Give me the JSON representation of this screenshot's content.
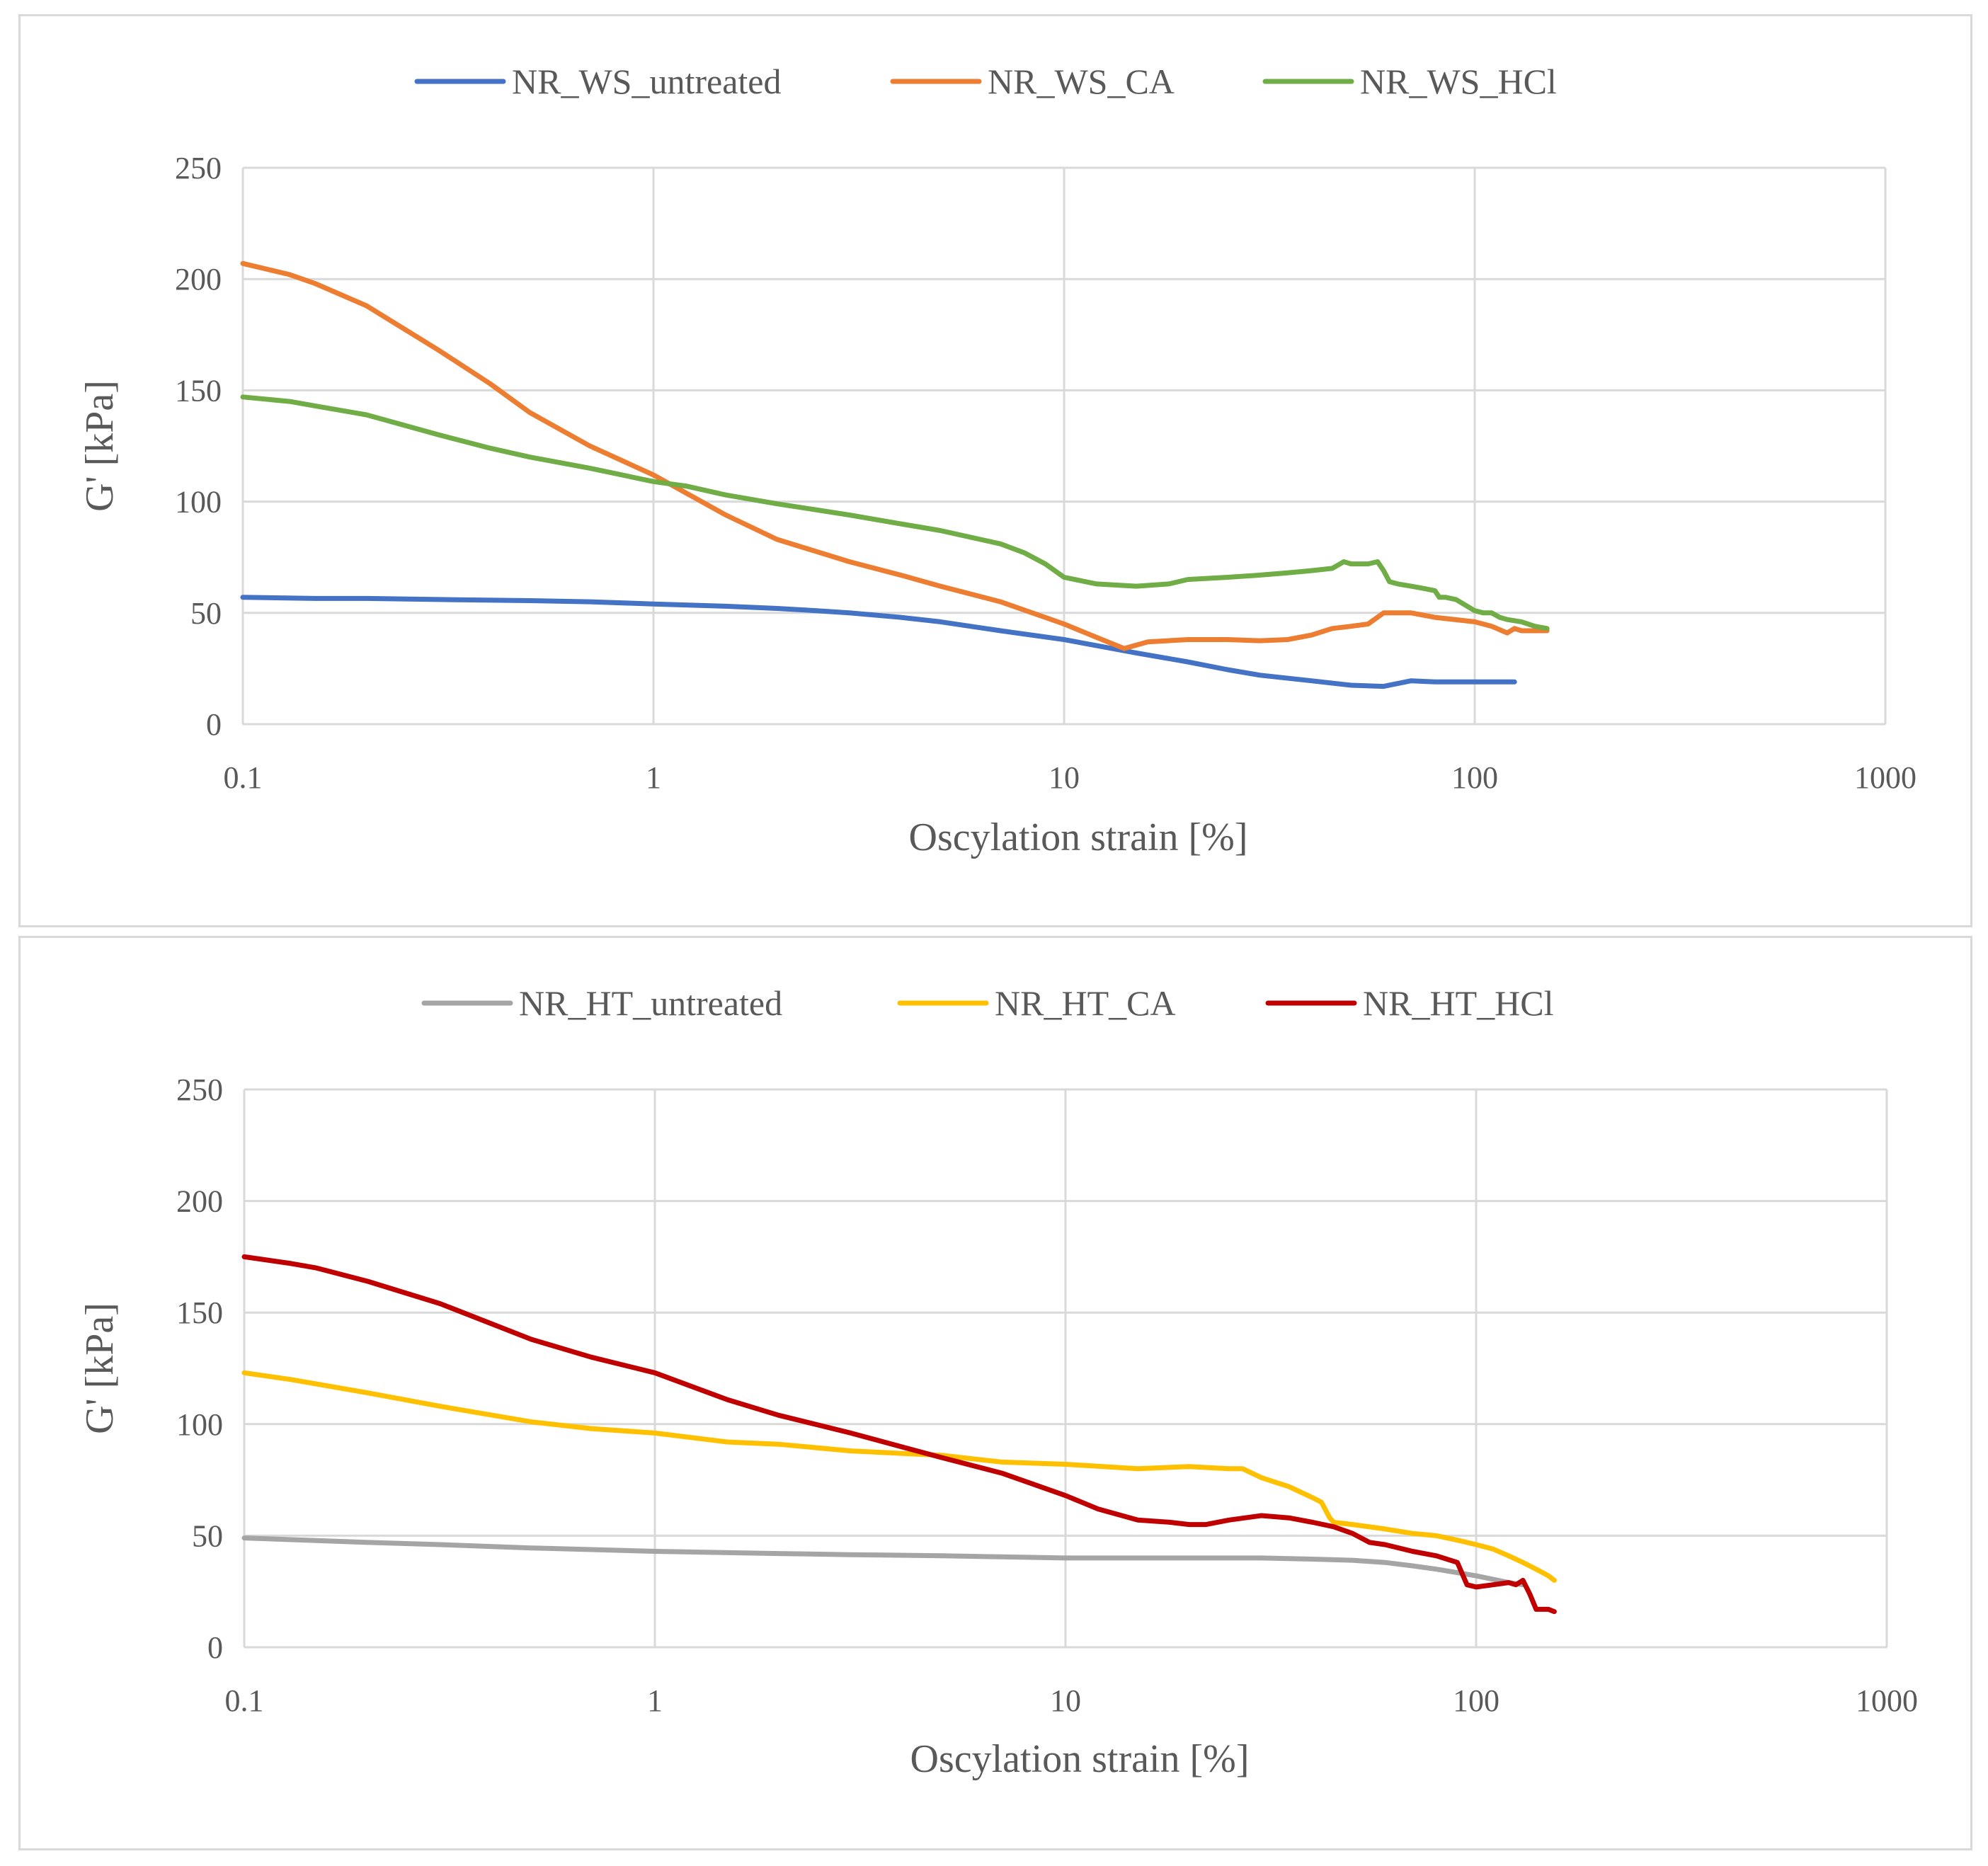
{
  "chart_data": [
    {
      "type": "line",
      "title": "",
      "xlabel": "Oscylation strain [%]",
      "ylabel": "G' [kPa]",
      "xscale": "log",
      "xlim": [
        0.1,
        1000
      ],
      "ylim": [
        0,
        250
      ],
      "x_ticks": [
        "0.1",
        "1",
        "10",
        "100",
        "1000"
      ],
      "y_ticks": [
        "0",
        "50",
        "100",
        "150",
        "200",
        "250"
      ],
      "grid": true,
      "legend_position": "top",
      "series": [
        {
          "name": "NR_WS_untreated",
          "color": "#4472c4",
          "x": [
            0.1,
            0.15,
            0.2,
            0.3,
            0.5,
            0.7,
            1,
            1.5,
            2,
            2.5,
            3,
            4,
            5,
            7,
            10,
            15,
            20,
            25,
            30,
            40,
            50,
            60,
            70,
            80,
            100,
            125
          ],
          "y": [
            57,
            56.5,
            56.5,
            56,
            55.5,
            55,
            54,
            53,
            52,
            51,
            50,
            48,
            46,
            42,
            38,
            32,
            28,
            24.5,
            22,
            19.5,
            17.5,
            17,
            19.5,
            19,
            19,
            19
          ]
        },
        {
          "name": "NR_WS_CA",
          "color": "#ed7d31",
          "x": [
            0.1,
            0.13,
            0.15,
            0.2,
            0.25,
            0.3,
            0.4,
            0.5,
            0.7,
            1,
            1.5,
            2,
            3,
            4,
            5,
            7,
            10,
            12,
            14,
            16,
            20,
            25,
            30,
            35,
            40,
            45,
            50,
            55,
            60,
            70,
            80,
            100,
            110,
            120,
            125,
            130,
            150
          ],
          "y": [
            207,
            202,
            198,
            188,
            177,
            168,
            153,
            140,
            125,
            112,
            94,
            83,
            73,
            67,
            62,
            55,
            45,
            39,
            34,
            37,
            38,
            38,
            37.5,
            38,
            40,
            43,
            44,
            45,
            50,
            50,
            48,
            46,
            44,
            41,
            43,
            42,
            42
          ]
        },
        {
          "name": "NR_WS_HCl",
          "color": "#70ad47",
          "x": [
            0.1,
            0.13,
            0.15,
            0.2,
            0.3,
            0.4,
            0.5,
            0.7,
            1,
            1.2,
            1.5,
            2,
            3,
            4,
            5,
            7,
            8,
            9,
            10,
            12,
            15,
            18,
            20,
            25,
            30,
            35,
            40,
            45,
            48,
            50,
            55,
            58,
            60,
            62,
            65,
            70,
            75,
            80,
            82,
            85,
            90,
            100,
            105,
            110,
            115,
            120,
            130,
            140,
            150
          ],
          "y": [
            147,
            145,
            143,
            139,
            130,
            124,
            120,
            115,
            109,
            107,
            103,
            99,
            94,
            90,
            87,
            81,
            77,
            72,
            66,
            63,
            62,
            63,
            65,
            66,
            67,
            68,
            69,
            70,
            73,
            72,
            72,
            73,
            69,
            64,
            63,
            62,
            61,
            60,
            57,
            57,
            56,
            51,
            50,
            50,
            48,
            47,
            46,
            44,
            43
          ]
        }
      ]
    },
    {
      "type": "line",
      "title": "",
      "xlabel": "Oscylation strain [%]",
      "ylabel": "G' [kPa]",
      "xscale": "log",
      "xlim": [
        0.1,
        1000
      ],
      "ylim": [
        0,
        250
      ],
      "x_ticks": [
        "0.1",
        "1",
        "10",
        "100",
        "1000"
      ],
      "y_ticks": [
        "0",
        "50",
        "100",
        "150",
        "200",
        "250"
      ],
      "grid": true,
      "legend_position": "top",
      "series": [
        {
          "name": "NR_HT_untreated",
          "color": "#a5a5a5",
          "x": [
            0.1,
            0.2,
            0.3,
            0.5,
            1,
            2,
            3,
            5,
            7,
            10,
            20,
            30,
            40,
            50,
            60,
            70,
            80,
            100,
            120,
            130
          ],
          "y": [
            49,
            47,
            46,
            44.5,
            43,
            42,
            41.5,
            41,
            40.5,
            40,
            40,
            40,
            39.5,
            39,
            38,
            36.5,
            35,
            32,
            29,
            28
          ]
        },
        {
          "name": "NR_HT_CA",
          "color": "#ffc000",
          "x": [
            0.1,
            0.13,
            0.15,
            0.2,
            0.3,
            0.5,
            0.7,
            1,
            1.5,
            2,
            3,
            5,
            7,
            10,
            15,
            20,
            25,
            27,
            30,
            35,
            40,
            42,
            44,
            45,
            50,
            60,
            70,
            80,
            90,
            100,
            110,
            120,
            130,
            140,
            150,
            155
          ],
          "y": [
            123,
            120,
            118,
            114,
            108,
            101,
            98,
            96,
            92,
            91,
            88,
            86,
            83,
            82,
            80,
            81,
            80,
            80,
            76,
            72,
            67,
            65,
            58,
            56,
            55,
            53,
            51,
            50,
            48,
            46,
            44,
            41,
            38,
            35,
            32,
            30
          ]
        },
        {
          "name": "NR_HT_HCl",
          "color": "#c00000",
          "x": [
            0.1,
            0.13,
            0.15,
            0.2,
            0.3,
            0.5,
            0.7,
            1,
            1.5,
            2,
            3,
            5,
            7,
            10,
            12,
            15,
            18,
            20,
            22,
            25,
            30,
            35,
            40,
            45,
            50,
            55,
            60,
            70,
            80,
            90,
            95,
            100,
            110,
            120,
            125,
            130,
            135,
            140,
            150,
            155
          ],
          "y": [
            175,
            172,
            170,
            164,
            154,
            138,
            130,
            123,
            111,
            104,
            96,
            85,
            78,
            68,
            62,
            57,
            56,
            55,
            55,
            57,
            59,
            58,
            56,
            54,
            51,
            47,
            46,
            43,
            41,
            38,
            28,
            27,
            28,
            29,
            28,
            30,
            24,
            17,
            17,
            16
          ]
        }
      ]
    }
  ]
}
